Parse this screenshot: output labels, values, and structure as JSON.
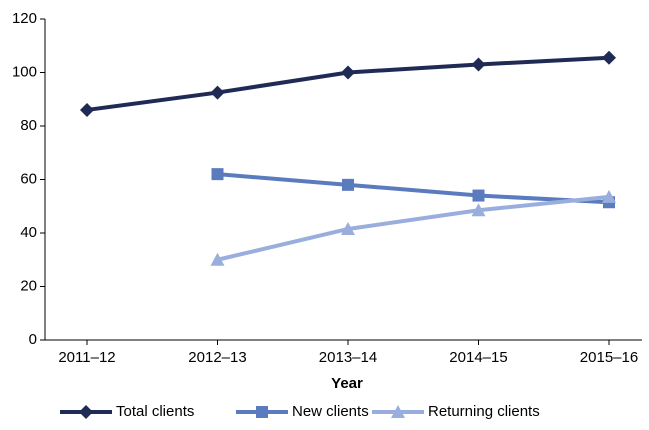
{
  "chart_data": {
    "type": "line",
    "x_label": "Year",
    "categories": [
      "2011–12",
      "2012–13",
      "2013–14",
      "2014–15",
      "2015–16"
    ],
    "series": [
      {
        "name": "Total clients",
        "color": "#1f2a55",
        "marker": "diamond",
        "values": [
          86,
          92.5,
          100,
          103,
          105.5
        ]
      },
      {
        "name": "New clients",
        "color": "#5b7bbf",
        "marker": "square",
        "values": [
          null,
          62,
          58,
          54,
          51.5
        ]
      },
      {
        "name": "Returning clients",
        "color": "#9aaede",
        "marker": "triangle",
        "values": [
          null,
          30,
          41.5,
          48.5,
          53.5
        ]
      }
    ],
    "ylim": [
      0,
      120
    ],
    "yticks": [
      0,
      20,
      40,
      60,
      80,
      100,
      120
    ],
    "legend": "bottom"
  }
}
